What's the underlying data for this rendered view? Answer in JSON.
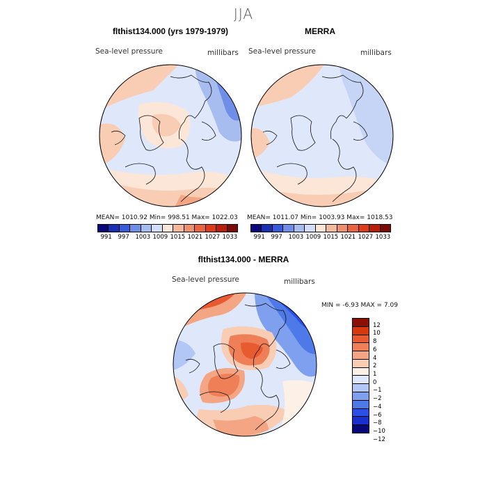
{
  "figure": {
    "title": "JJA"
  },
  "panels": {
    "top_left": {
      "title": "flthist134.000 (yrs 1979-1979)",
      "variable": "Sea-level pressure",
      "units": "millibars",
      "stats": "MEAN= 1010.92   Min= 998.51   Max= 1022.03"
    },
    "top_right": {
      "title": "MERRA",
      "variable": "Sea-level pressure",
      "units": "millibars",
      "stats": "MEAN= 1011.07   Min= 1003.93   Max= 1018.53"
    },
    "bottom": {
      "title": "flthist134.000 - MERRA",
      "variable": "Sea-level pressure",
      "units": "millibars",
      "stats": "MIN =   -6.93  MAX =    7.09"
    }
  },
  "colorbar_abs": {
    "colors": [
      "#08087a",
      "#1a2fb0",
      "#3a5bd8",
      "#6f8ee8",
      "#a7bdf0",
      "#d2defa",
      "#fbe6d8",
      "#f4b89b",
      "#ee8f6e",
      "#e8653f",
      "#dc3b1c",
      "#b81e0c",
      "#7a0a03"
    ],
    "ticks": [
      "991",
      "997",
      "1003",
      "1009",
      "1015",
      "1021",
      "1027",
      "1033"
    ]
  },
  "colorbar_diff": {
    "colors": [
      "#08087a",
      "#1a2fd0",
      "#2a4fe8",
      "#4d7ae8",
      "#7ea0ef",
      "#b2c7f5",
      "#dfe8fb",
      "#fdf0e6",
      "#f8cdb4",
      "#f3a584",
      "#ee7f56",
      "#e85b30",
      "#d8380e",
      "#8c0f03"
    ],
    "ticks": [
      "12",
      "10",
      "8",
      "6",
      "4",
      "2",
      "1",
      "0",
      "−1",
      "−2",
      "−4",
      "−6",
      "−8",
      "−10",
      "−12"
    ]
  }
}
